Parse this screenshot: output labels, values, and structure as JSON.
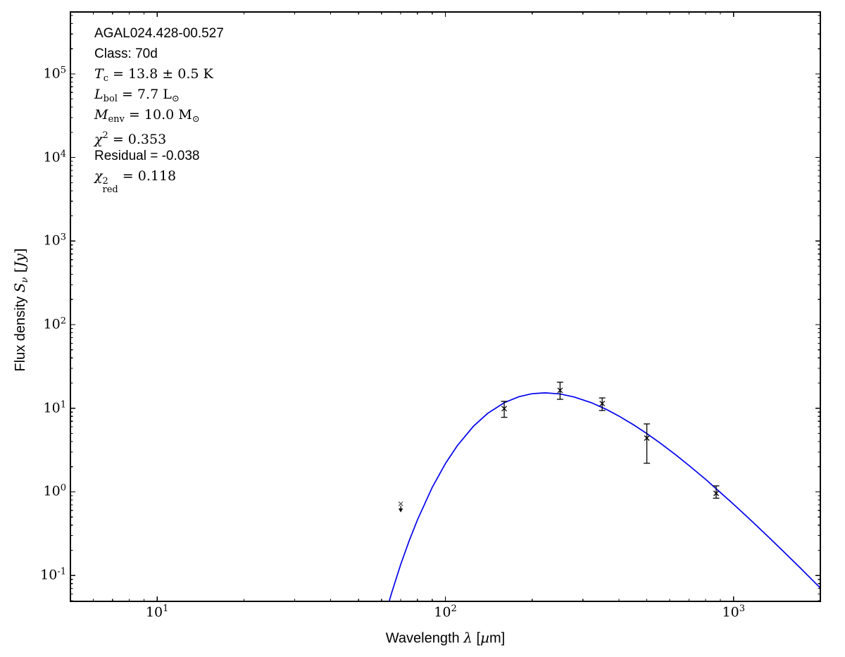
{
  "figure": {
    "background": "#ffffff",
    "frame_color": "#000000",
    "curve_color": "#0000ee",
    "marker_color": "#000000",
    "upper_limit_marker_color": "#555555"
  },
  "chart_data": {
    "type": "line",
    "description": "Spectral energy distribution (SED): greybody fit curve with photometric data points and one upper limit, log-log axes",
    "x_axis": {
      "scale": "log",
      "lim": [
        5,
        2000
      ],
      "major_tick_exponents": [
        1,
        2,
        3
      ],
      "label_segments": [
        {
          "t": "Wavelength ",
          "s": "sans"
        },
        {
          "t": "λ",
          "s": "it"
        },
        {
          "t": " [",
          "s": "sans"
        },
        {
          "t": "µ",
          "s": "it"
        },
        {
          "t": "m]",
          "s": "sans"
        }
      ]
    },
    "y_axis": {
      "scale": "log",
      "lim": [
        0.049,
        550000
      ],
      "major_tick_exponents": [
        5,
        4,
        3,
        2,
        1,
        0,
        -1
      ],
      "label_segments": [
        {
          "t": "Flux density ",
          "s": "sans"
        },
        {
          "t": "S",
          "s": "it"
        },
        {
          "t": "ν",
          "s": "subit"
        },
        {
          "t": " [",
          "s": "rm"
        },
        {
          "t": "Jy",
          "s": "it"
        },
        {
          "t": "]",
          "s": "rm"
        }
      ]
    },
    "fit_curve": {
      "name": "greybody-fit",
      "points_um_jy": [
        [
          55,
          0.0073
        ],
        [
          60,
          0.0236
        ],
        [
          65,
          0.061
        ],
        [
          70,
          0.136
        ],
        [
          75,
          0.264
        ],
        [
          80,
          0.463
        ],
        [
          90,
          1.13
        ],
        [
          100,
          2.18
        ],
        [
          110,
          3.57
        ],
        [
          125,
          6.07
        ],
        [
          140,
          8.66
        ],
        [
          160,
          11.66
        ],
        [
          180,
          13.76
        ],
        [
          200,
          14.94
        ],
        [
          222,
          15.3
        ],
        [
          250,
          14.83
        ],
        [
          280,
          13.64
        ],
        [
          320,
          11.71
        ],
        [
          360,
          9.78
        ],
        [
          400,
          8.07
        ],
        [
          450,
          6.33
        ],
        [
          500,
          4.98
        ],
        [
          560,
          3.77
        ],
        [
          630,
          2.77
        ],
        [
          700,
          2.07
        ],
        [
          800,
          1.41
        ],
        [
          870,
          1.09
        ],
        [
          1000,
          0.71
        ],
        [
          1150,
          0.455
        ],
        [
          1300,
          0.305
        ],
        [
          1500,
          0.189
        ],
        [
          1700,
          0.124
        ],
        [
          2000,
          0.0708
        ]
      ]
    },
    "data_points": [
      {
        "wavelength_um": 70,
        "flux_jy": 0.72,
        "upper_limit": true,
        "limit_arrow_to_jy": 0.58
      },
      {
        "wavelength_um": 160,
        "flux_jy": 9.9,
        "err_hi_jy": 12.1,
        "err_lo_jy": 7.8
      },
      {
        "wavelength_um": 250,
        "flux_jy": 16.4,
        "err_hi_jy": 20.5,
        "err_lo_jy": 12.8
      },
      {
        "wavelength_um": 350,
        "flux_jy": 11.4,
        "err_hi_jy": 13.3,
        "err_lo_jy": 9.4
      },
      {
        "wavelength_um": 500,
        "flux_jy": 4.4,
        "err_hi_jy": 6.5,
        "err_lo_jy": 2.2
      },
      {
        "wavelength_um": 870,
        "flux_jy": 0.96,
        "err_hi_jy": 1.18,
        "err_lo_jy": 0.84
      }
    ],
    "annotation": {
      "lines": [
        {
          "name": "source-name",
          "segments": [
            {
              "t": "AGAL024.428-00.527",
              "s": "sans"
            }
          ]
        },
        {
          "name": "class",
          "segments": [
            {
              "t": "Class: 70d",
              "s": "sans"
            }
          ]
        },
        {
          "name": "temperature",
          "segments": [
            {
              "t": "T",
              "s": "it"
            },
            {
              "t": "c",
              "s": "sub"
            },
            {
              "t": " = 13.8 ± 0.5 K",
              "s": "rm"
            }
          ]
        },
        {
          "name": "luminosity",
          "segments": [
            {
              "t": "L",
              "s": "it"
            },
            {
              "t": "bol",
              "s": "sub"
            },
            {
              "t": " = 7.7 L",
              "s": "rm"
            },
            {
              "t": "⊙",
              "s": "sub"
            }
          ]
        },
        {
          "name": "envelope-mass",
          "segments": [
            {
              "t": "M",
              "s": "it"
            },
            {
              "t": "env",
              "s": "sub"
            },
            {
              "t": " = 10.0 M",
              "s": "rm"
            },
            {
              "t": "⊙",
              "s": "sub"
            }
          ]
        },
        {
          "name": "chi-squared",
          "segments": [
            {
              "t": "χ",
              "s": "it"
            },
            {
              "t": "2",
              "s": "sup"
            },
            {
              "t": " = 0.353",
              "s": "rm"
            }
          ]
        },
        {
          "name": "residual",
          "segments": [
            {
              "t": "Residual = -0.038",
              "s": "sans"
            }
          ]
        },
        {
          "name": "chi-squared-reduced",
          "segments": [
            {
              "t": "χ",
              "s": "it"
            },
            {
              "sup": "2",
              "sub": "red",
              "s": "stack"
            },
            {
              "t": " = 0.118",
              "s": "rm"
            }
          ]
        }
      ]
    }
  }
}
